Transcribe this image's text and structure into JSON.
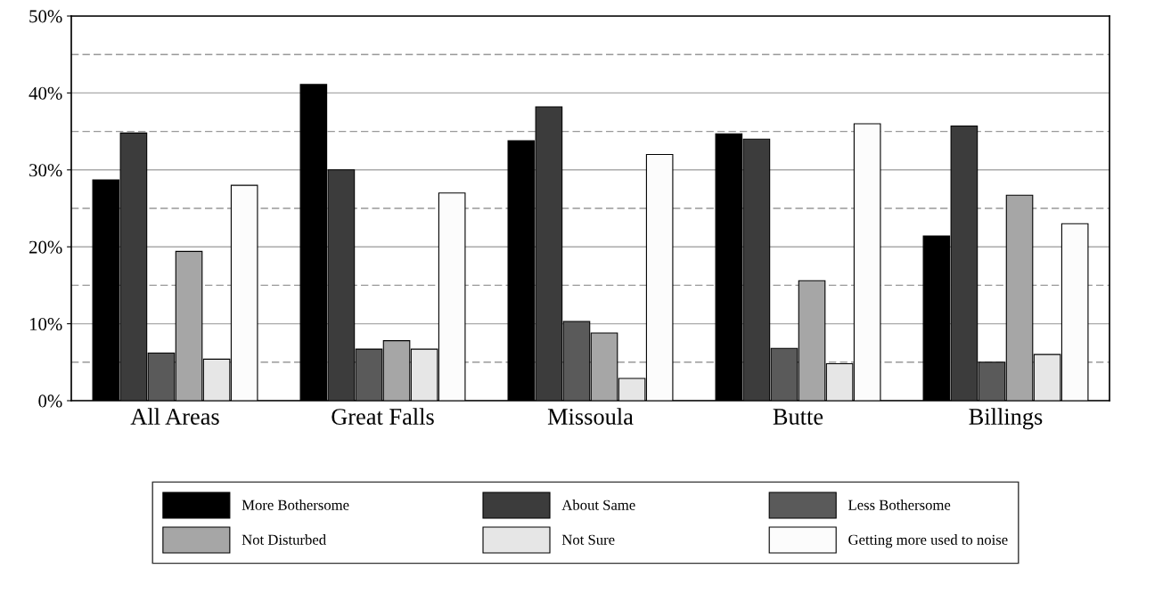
{
  "chart_data": {
    "type": "bar",
    "categories": [
      "All Areas",
      "Great Falls",
      "Missoula",
      "Butte",
      "Billings"
    ],
    "series": [
      {
        "name": "More Bothersome",
        "color": "#000000",
        "values": [
          28.7,
          41.1,
          33.8,
          34.7,
          21.4
        ]
      },
      {
        "name": "About Same",
        "color": "#3c3c3c",
        "values": [
          34.8,
          30.0,
          38.2,
          34.0,
          35.7
        ]
      },
      {
        "name": "Less Bothersome",
        "color": "#5a5a5a",
        "values": [
          6.2,
          6.7,
          10.3,
          6.8,
          5.0
        ]
      },
      {
        "name": "Not Disturbed",
        "color": "#a6a6a6",
        "values": [
          19.4,
          7.8,
          8.8,
          15.6,
          26.7
        ]
      },
      {
        "name": "Not Sure",
        "color": "#e6e6e6",
        "values": [
          5.4,
          6.7,
          2.9,
          4.8,
          6.0
        ]
      },
      {
        "name": "Getting more used to noise",
        "color": "#fcfcfc",
        "values": [
          28.0,
          27.0,
          32.0,
          36.0,
          23.0
        ]
      }
    ],
    "ylim": [
      0,
      50
    ],
    "yticks": [
      {
        "value": 0,
        "label": "0%"
      },
      {
        "value": 10,
        "label": "10%"
      },
      {
        "value": 20,
        "label": "20%"
      },
      {
        "value": 30,
        "label": "30%"
      },
      {
        "value": 40,
        "label": "40%"
      },
      {
        "value": 50,
        "label": "50%"
      }
    ],
    "grid": "y",
    "ref_lines": [
      {
        "axis": "y",
        "value": 5,
        "color": "#999999",
        "line_style": "dashed"
      },
      {
        "axis": "y",
        "value": 15,
        "color": "#999999",
        "line_style": "dashed"
      },
      {
        "axis": "y",
        "value": 25,
        "color": "#999999",
        "line_style": "dashed"
      },
      {
        "axis": "y",
        "value": 35,
        "color": "#999999",
        "line_style": "dashed"
      },
      {
        "axis": "y",
        "value": 45,
        "color": "#999999",
        "line_style": "dashed"
      }
    ],
    "legend": "bottom"
  }
}
